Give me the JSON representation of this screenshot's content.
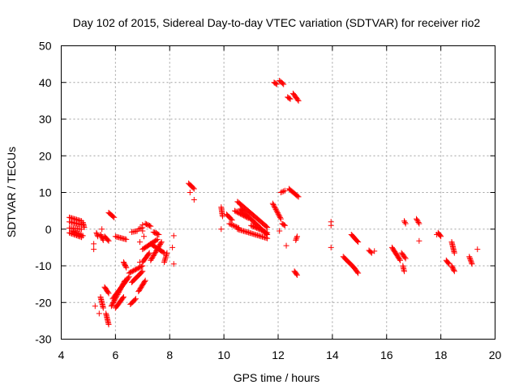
{
  "chart_data": {
    "type": "scatter",
    "title": "Day 102 of 2015, Sidereal Day-to-day VTEC variation (SDTVAR) for receiver rio2",
    "xlabel": "GPS time / hours",
    "ylabel": "SDTVAR / TECUs",
    "xlim": [
      4,
      20
    ],
    "ylim": [
      -30,
      50
    ],
    "xticks": [
      "4",
      "6",
      "8",
      "10",
      "12",
      "14",
      "16",
      "18",
      "20"
    ],
    "yticks": [
      "-30",
      "-20",
      "-10",
      "0",
      "10",
      "20",
      "30",
      "40",
      "50"
    ],
    "grid": true,
    "marker": "plus",
    "color": "#ff0000",
    "segments": [
      {
        "from": [
          4.3,
          3.2
        ],
        "to": [
          4.75,
          2.2
        ]
      },
      {
        "from": [
          4.3,
          2.0
        ],
        "to": [
          4.75,
          1.2
        ]
      },
      {
        "from": [
          4.3,
          0.3
        ],
        "to": [
          4.75,
          0.0
        ]
      },
      {
        "from": [
          4.3,
          -1.0
        ],
        "to": [
          4.75,
          -2.2
        ]
      },
      {
        "from": [
          4.4,
          -0.5
        ],
        "to": [
          4.8,
          -1.8
        ]
      },
      {
        "from": [
          4.8,
          1.8
        ],
        "to": [
          4.85,
          0.5
        ]
      },
      {
        "from": [
          5.3,
          -1.0
        ],
        "to": [
          5.35,
          -2.0
        ]
      },
      {
        "from": [
          5.45,
          -1.5
        ],
        "to": [
          5.55,
          -3.0
        ]
      },
      {
        "from": [
          5.6,
          -2.0
        ],
        "to": [
          5.75,
          -3.2
        ]
      },
      {
        "from": [
          5.75,
          4.5
        ],
        "to": [
          5.95,
          3.2
        ]
      },
      {
        "from": [
          6.0,
          -2.0
        ],
        "to": [
          6.4,
          -2.8
        ]
      },
      {
        "from": [
          6.6,
          -0.8
        ],
        "to": [
          6.8,
          -0.5
        ]
      },
      {
        "from": [
          6.85,
          0.0
        ],
        "to": [
          7.0,
          0.4
        ]
      },
      {
        "from": [
          7.1,
          1.5
        ],
        "to": [
          7.3,
          0.8
        ]
      },
      {
        "from": [
          7.4,
          -0.8
        ],
        "to": [
          7.6,
          -1.5
        ]
      },
      {
        "from": [
          5.45,
          -18.5
        ],
        "to": [
          5.55,
          -21.5
        ]
      },
      {
        "from": [
          5.6,
          -15.8
        ],
        "to": [
          5.75,
          -17.5
        ]
      },
      {
        "from": [
          5.65,
          -23.0
        ],
        "to": [
          5.75,
          -26.0
        ]
      },
      {
        "from": [
          5.85,
          -21.0
        ],
        "to": [
          6.35,
          -14.0
        ]
      },
      {
        "from": [
          5.9,
          -19.0
        ],
        "to": [
          6.5,
          -13.0
        ]
      },
      {
        "from": [
          6.0,
          -21.5
        ],
        "to": [
          6.3,
          -18.5
        ]
      },
      {
        "from": [
          6.3,
          -9.0
        ],
        "to": [
          6.4,
          -10.5
        ]
      },
      {
        "from": [
          6.5,
          -12.0
        ],
        "to": [
          7.0,
          -10.0
        ]
      },
      {
        "from": [
          6.55,
          -20.5
        ],
        "to": [
          6.75,
          -19.0
        ]
      },
      {
        "from": [
          6.6,
          -14.5
        ],
        "to": [
          7.0,
          -11.5
        ]
      },
      {
        "from": [
          6.85,
          -17.0
        ],
        "to": [
          7.1,
          -14.0
        ]
      },
      {
        "from": [
          7.0,
          -9.0
        ],
        "to": [
          7.25,
          -6.5
        ]
      },
      {
        "from": [
          7.0,
          -5.5
        ],
        "to": [
          7.55,
          -2.8
        ]
      },
      {
        "from": [
          7.3,
          -8.5
        ],
        "to": [
          7.7,
          -3.5
        ]
      },
      {
        "from": [
          7.3,
          -4.0
        ],
        "to": [
          7.8,
          -6.5
        ]
      },
      {
        "from": [
          7.8,
          -9.0
        ],
        "to": [
          7.9,
          -6.5
        ]
      },
      {
        "from": [
          8.7,
          12.5
        ],
        "to": [
          8.9,
          11.0
        ]
      },
      {
        "from": [
          9.9,
          6.0
        ],
        "to": [
          9.95,
          3.5
        ]
      },
      {
        "from": [
          10.1,
          4.0
        ],
        "to": [
          10.3,
          2.5
        ]
      },
      {
        "from": [
          10.2,
          1.5
        ],
        "to": [
          10.55,
          0.3
        ]
      },
      {
        "from": [
          10.5,
          0.0
        ],
        "to": [
          11.6,
          -2.5
        ]
      },
      {
        "from": [
          10.5,
          7.5
        ],
        "to": [
          11.6,
          0.5
        ]
      },
      {
        "from": [
          10.6,
          5.5
        ],
        "to": [
          11.6,
          -1.5
        ]
      },
      {
        "from": [
          10.4,
          5.0
        ],
        "to": [
          10.9,
          3.0
        ]
      },
      {
        "from": [
          11.0,
          1.0
        ],
        "to": [
          11.6,
          -1.0
        ]
      },
      {
        "from": [
          11.8,
          7.0
        ],
        "to": [
          12.1,
          2.8
        ]
      },
      {
        "from": [
          11.85,
          40.0
        ],
        "to": [
          11.95,
          39.5
        ]
      },
      {
        "from": [
          12.05,
          40.5
        ],
        "to": [
          12.2,
          39.5
        ]
      },
      {
        "from": [
          12.1,
          10.0
        ],
        "to": [
          12.25,
          10.5
        ]
      },
      {
        "from": [
          12.15,
          1.5
        ],
        "to": [
          12.25,
          1.0
        ]
      },
      {
        "from": [
          12.35,
          36.0
        ],
        "to": [
          12.45,
          35.5
        ]
      },
      {
        "from": [
          12.4,
          11.0
        ],
        "to": [
          12.75,
          8.8
        ]
      },
      {
        "from": [
          12.55,
          37.0
        ],
        "to": [
          12.75,
          35.0
        ]
      },
      {
        "from": [
          12.6,
          -11.5
        ],
        "to": [
          12.7,
          -12.5
        ]
      },
      {
        "from": [
          12.7,
          -2.0
        ],
        "to": [
          12.65,
          -3.0
        ]
      },
      {
        "from": [
          14.4,
          -7.5
        ],
        "to": [
          14.8,
          -10.5
        ]
      },
      {
        "from": [
          14.7,
          -1.5
        ],
        "to": [
          14.95,
          -3.5
        ]
      },
      {
        "from": [
          14.8,
          -10.5
        ],
        "to": [
          14.95,
          -12.0
        ]
      },
      {
        "from": [
          15.35,
          -5.8
        ],
        "to": [
          15.45,
          -6.5
        ]
      },
      {
        "from": [
          16.2,
          -5.0
        ],
        "to": [
          16.5,
          -8.5
        ]
      },
      {
        "from": [
          16.55,
          -6.5
        ],
        "to": [
          16.7,
          -8.0
        ]
      },
      {
        "from": [
          16.6,
          -10.0
        ],
        "to": [
          16.65,
          -11.5
        ]
      },
      {
        "from": [
          16.65,
          2.2
        ],
        "to": [
          16.7,
          1.5
        ]
      },
      {
        "from": [
          17.1,
          2.8
        ],
        "to": [
          17.2,
          1.5
        ]
      },
      {
        "from": [
          17.9,
          -1.0
        ],
        "to": [
          18.0,
          -2.0
        ]
      },
      {
        "from": [
          18.2,
          -8.5
        ],
        "to": [
          18.3,
          -9.5
        ]
      },
      {
        "from": [
          18.4,
          -3.5
        ],
        "to": [
          18.5,
          -6.5
        ]
      },
      {
        "from": [
          18.4,
          -10.0
        ],
        "to": [
          18.5,
          -11.5
        ]
      },
      {
        "from": [
          19.05,
          -7.5
        ],
        "to": [
          19.15,
          -9.5
        ]
      }
    ],
    "points": [
      [
        5.2,
        -4.0
      ],
      [
        5.2,
        -5.5
      ],
      [
        5.25,
        -21.0
      ],
      [
        5.4,
        -23.0
      ],
      [
        5.5,
        0.0
      ],
      [
        7.0,
        1.2
      ],
      [
        7.05,
        -2.0
      ],
      [
        6.9,
        -3.5
      ],
      [
        6.9,
        -9.0
      ],
      [
        7.5,
        -1.0
      ],
      [
        7.0,
        -0.5
      ],
      [
        8.1,
        -5.0
      ],
      [
        8.15,
        -1.8
      ],
      [
        8.15,
        -9.5
      ],
      [
        8.75,
        10.0
      ],
      [
        8.9,
        8.0
      ],
      [
        9.9,
        0.0
      ],
      [
        12.05,
        -0.5
      ],
      [
        12.3,
        -4.5
      ],
      [
        13.95,
        2.0
      ],
      [
        13.95,
        1.0
      ],
      [
        13.95,
        -5.0
      ],
      [
        15.55,
        -6.0
      ],
      [
        17.2,
        -3.2
      ],
      [
        17.85,
        -1.5
      ],
      [
        19.35,
        -5.5
      ]
    ]
  }
}
